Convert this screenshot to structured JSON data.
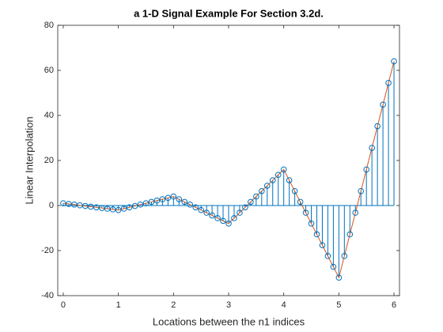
{
  "chart_data": {
    "type": "stem",
    "title": "a 1-D Signal Example For Section 3.2d.",
    "xlabel": "Locations between the n1 indices",
    "ylabel": "Linear Interpolation",
    "x": [
      0,
      0.1,
      0.2,
      0.3,
      0.4,
      0.5,
      0.6,
      0.7,
      0.8,
      0.9,
      1,
      1.1,
      1.2,
      1.3,
      1.4,
      1.5,
      1.6,
      1.7,
      1.8,
      1.9,
      2,
      2.1,
      2.2,
      2.3,
      2.4,
      2.5,
      2.6,
      2.7,
      2.8,
      2.9,
      3,
      3.1,
      3.2,
      3.3,
      3.4,
      3.5,
      3.6,
      3.7,
      3.8,
      3.9,
      4,
      4.1,
      4.2,
      4.3,
      4.4,
      4.5,
      4.6,
      4.7,
      4.8,
      4.9,
      5,
      5.1,
      5.2,
      5.3,
      5.4,
      5.5,
      5.6,
      5.7,
      5.8,
      5.9,
      6
    ],
    "values": [
      1,
      0.7,
      0.4,
      0.1,
      -0.2,
      -0.5,
      -0.8,
      -1.1,
      -1.4,
      -1.7,
      -2,
      -1.4,
      -0.8,
      -0.2,
      0.4,
      1,
      1.6,
      2.2,
      2.8,
      3.4,
      4,
      2.8,
      1.6,
      0.4,
      -0.8,
      -2,
      -3.2,
      -4.4,
      -5.6,
      -6.8,
      -8,
      -5.6,
      -3.2,
      -0.8,
      1.6,
      4,
      6.4,
      8.8,
      11.2,
      13.6,
      16,
      11.2,
      6.4,
      1.6,
      -3.2,
      -8,
      -12.8,
      -17.6,
      -22.4,
      -27.2,
      -32,
      -22.4,
      -12.8,
      -3.2,
      6.4,
      16,
      25.6,
      35.2,
      44.8,
      54.4,
      64
    ],
    "color": "#0072BD",
    "line_color": "#D95319",
    "xlim": [
      -0.1,
      6.1
    ],
    "xticks": [
      0,
      1,
      2,
      3,
      4,
      5,
      6
    ],
    "ylim": [
      -40,
      80
    ],
    "yticks": [
      -40,
      -20,
      0,
      20,
      40,
      60,
      80
    ]
  }
}
